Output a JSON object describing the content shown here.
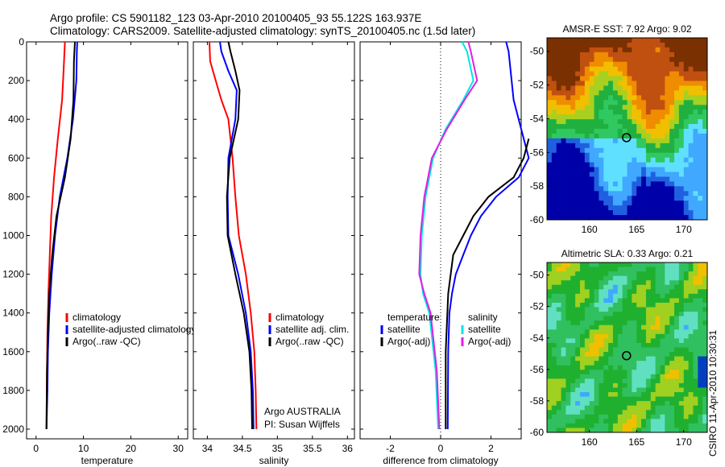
{
  "header": {
    "line1": "Argo profile: CS 5901182_123 03-Apr-2010 20100405_93 55.122S 163.937E",
    "line2": "Climatology: CARS2009. Satellite-adjusted climatology: synTS_20100405.nc (1.5d later)"
  },
  "footer": {
    "stamp": "CSIRO 11-Apr-2010 10:30:31",
    "argo_label": "Argo AUSTRALIA",
    "pi_label": "PI: Susan Wijffels"
  },
  "colors": {
    "climatology": "#ff0000",
    "satellite": "#0000ff",
    "argo": "#000000",
    "sat_salinity": "#00e5e5",
    "argo_salinity": "#e020e0"
  },
  "chart_data": [
    {
      "type": "line",
      "xlabel": "temperature",
      "xlim": [
        -2,
        32
      ],
      "ylim": [
        2050,
        0
      ],
      "xticks": [
        0,
        10,
        20,
        30
      ],
      "yticks": [
        0,
        200,
        400,
        600,
        800,
        1000,
        1200,
        1400,
        1600,
        1800,
        2000
      ],
      "grid": false,
      "legend_placement": "lower-right",
      "series": [
        {
          "name": "climatology",
          "color": "#ff0000",
          "x": [
            6.1,
            5.9,
            5.5,
            4.6,
            3.8,
            3.2,
            2.9,
            2.6,
            2.4,
            2.3,
            2.2
          ],
          "y": [
            0,
            100,
            300,
            500,
            700,
            900,
            1100,
            1300,
            1500,
            1700,
            2000
          ]
        },
        {
          "name": "satellite-adjusted climatology",
          "color": "#0000ff",
          "x": [
            8.7,
            8.6,
            8.5,
            7.8,
            6.6,
            5.0,
            4.0,
            3.3,
            2.8,
            2.5,
            2.4,
            2.3,
            2.2
          ],
          "y": [
            0,
            50,
            200,
            400,
            600,
            800,
            1000,
            1200,
            1400,
            1600,
            1800,
            1900,
            2000
          ]
        },
        {
          "name": "Argo(..raw -QC)",
          "color": "#000000",
          "x": [
            8.2,
            8.0,
            7.9,
            7.3,
            6.1,
            4.3,
            3.4,
            2.8,
            2.5,
            2.3,
            2.2
          ],
          "y": [
            0,
            100,
            300,
            500,
            700,
            900,
            1100,
            1300,
            1500,
            1700,
            2000
          ]
        }
      ]
    },
    {
      "type": "line",
      "xlabel": "salinity",
      "xlim": [
        33.8,
        36.1
      ],
      "ylim": [
        2050,
        0
      ],
      "xticks": [
        34,
        34.5,
        35,
        35.5,
        36
      ],
      "yticks": [
        0,
        200,
        400,
        600,
        800,
        1000,
        1200,
        1400,
        1600,
        1800,
        2000
      ],
      "grid": false,
      "legend_placement": "lower-right",
      "series": [
        {
          "name": "climatology",
          "color": "#ff0000",
          "x": [
            34.03,
            34.04,
            34.12,
            34.2,
            34.3,
            34.36,
            34.4,
            34.45,
            34.55,
            34.62,
            34.67,
            34.69,
            34.7
          ],
          "y": [
            0,
            100,
            200,
            300,
            400,
            600,
            800,
            1000,
            1200,
            1400,
            1600,
            1800,
            2000
          ]
        },
        {
          "name": "satellite adj. clim.",
          "color": "#0000ff",
          "x": [
            34.18,
            34.2,
            34.3,
            34.42,
            34.4,
            34.3,
            34.29,
            34.3,
            34.44,
            34.55,
            34.62,
            34.65,
            34.66
          ],
          "y": [
            0,
            50,
            150,
            250,
            400,
            600,
            800,
            1000,
            1200,
            1400,
            1600,
            1800,
            2000
          ]
        },
        {
          "name": "Argo(..raw -QC)",
          "color": "#000000",
          "x": [
            34.3,
            34.33,
            34.4,
            34.46,
            34.44,
            34.32,
            34.28,
            34.29,
            34.4,
            34.52,
            34.6,
            34.63,
            34.64
          ],
          "y": [
            0,
            50,
            150,
            250,
            400,
            600,
            800,
            1000,
            1200,
            1400,
            1600,
            1800,
            2000
          ]
        }
      ]
    },
    {
      "type": "line",
      "xlabel": "difference from climatology",
      "xlim": [
        -3.2,
        3.2
      ],
      "ylim": [
        2050,
        0
      ],
      "xticks": [
        -2,
        0,
        2
      ],
      "yticks": [
        0,
        200,
        400,
        600,
        800,
        1000,
        1200,
        1400,
        1600,
        1800,
        2000
      ],
      "grid": false,
      "legend_placement": "lower-center",
      "legend_groups": [
        "temperature",
        "salinity"
      ],
      "zero_line": true,
      "series": [
        {
          "name": "satellite",
          "group": "temperature",
          "color": "#0000ff",
          "x": [
            2.6,
            2.7,
            2.9,
            3.2,
            3.5,
            3.1,
            2.2,
            1.6,
            1.2,
            0.9,
            0.6,
            0.45,
            0.35,
            0.3,
            0.28
          ],
          "y": [
            0,
            50,
            300,
            450,
            600,
            700,
            800,
            900,
            1000,
            1100,
            1200,
            1300,
            1400,
            1600,
            2000
          ]
        },
        {
          "name": "Argo(-adj)",
          "group": "temperature",
          "color": "#000000",
          "x": [
            3.5,
            3.3,
            2.9,
            1.9,
            1.3,
            0.9,
            0.5,
            0.3,
            0.2,
            0.2
          ],
          "y": [
            500,
            600,
            700,
            800,
            900,
            1000,
            1100,
            1300,
            1600,
            2000
          ]
        },
        {
          "name": "satellite",
          "group": "salinity",
          "color": "#00e5e5",
          "x": [
            0.85,
            1.05,
            1.3,
            0.9,
            0.2,
            -0.3,
            -0.6,
            -0.75,
            -0.8,
            -0.7,
            -0.45,
            -0.2,
            -0.1
          ],
          "y": [
            0,
            50,
            200,
            300,
            450,
            600,
            800,
            1000,
            1200,
            1300,
            1400,
            1700,
            2000
          ]
        },
        {
          "name": "Argo(-adj)",
          "group": "salinity",
          "color": "#e020e0",
          "x": [
            1.1,
            1.2,
            1.45,
            0.95,
            0.25,
            -0.35,
            -0.65,
            -0.8,
            -0.85,
            -0.65,
            -0.4,
            -0.15,
            -0.05
          ],
          "y": [
            0,
            50,
            200,
            300,
            450,
            600,
            800,
            1000,
            1200,
            1300,
            1400,
            1700,
            2000
          ]
        }
      ]
    },
    {
      "type": "heatmap",
      "title": "AMSR-E SST: 7.92 Argo: 9.02",
      "xlim": [
        155.5,
        172.5
      ],
      "ylim": [
        -60,
        -49.2
      ],
      "xticks": [
        160,
        165,
        170
      ],
      "yticks": [
        -50,
        -52,
        -54,
        -56,
        -58,
        -60
      ],
      "marker": {
        "lon": 163.937,
        "lat": -55.122
      },
      "colors": [
        "#0000a8",
        "#2060e0",
        "#40a8ff",
        "#60e0ff",
        "#30c860",
        "#20b040",
        "#a8d020",
        "#f0c000",
        "#f08c00",
        "#c05010",
        "#7a3000"
      ]
    },
    {
      "type": "heatmap",
      "title": "Altimetric SLA: 0.33 Argo: 0.21",
      "xlim": [
        155.5,
        172.5
      ],
      "ylim": [
        -60,
        -49.2
      ],
      "xticks": [
        160,
        165,
        170
      ],
      "yticks": [
        -50,
        -52,
        -54,
        -56,
        -58,
        -60
      ],
      "marker": {
        "lon": 163.937,
        "lat": -55.122
      },
      "colors": [
        "#0040c0",
        "#40a8ff",
        "#60e0c0",
        "#30c060",
        "#20b030",
        "#a0d020",
        "#f0c000",
        "#f08c00"
      ]
    }
  ]
}
